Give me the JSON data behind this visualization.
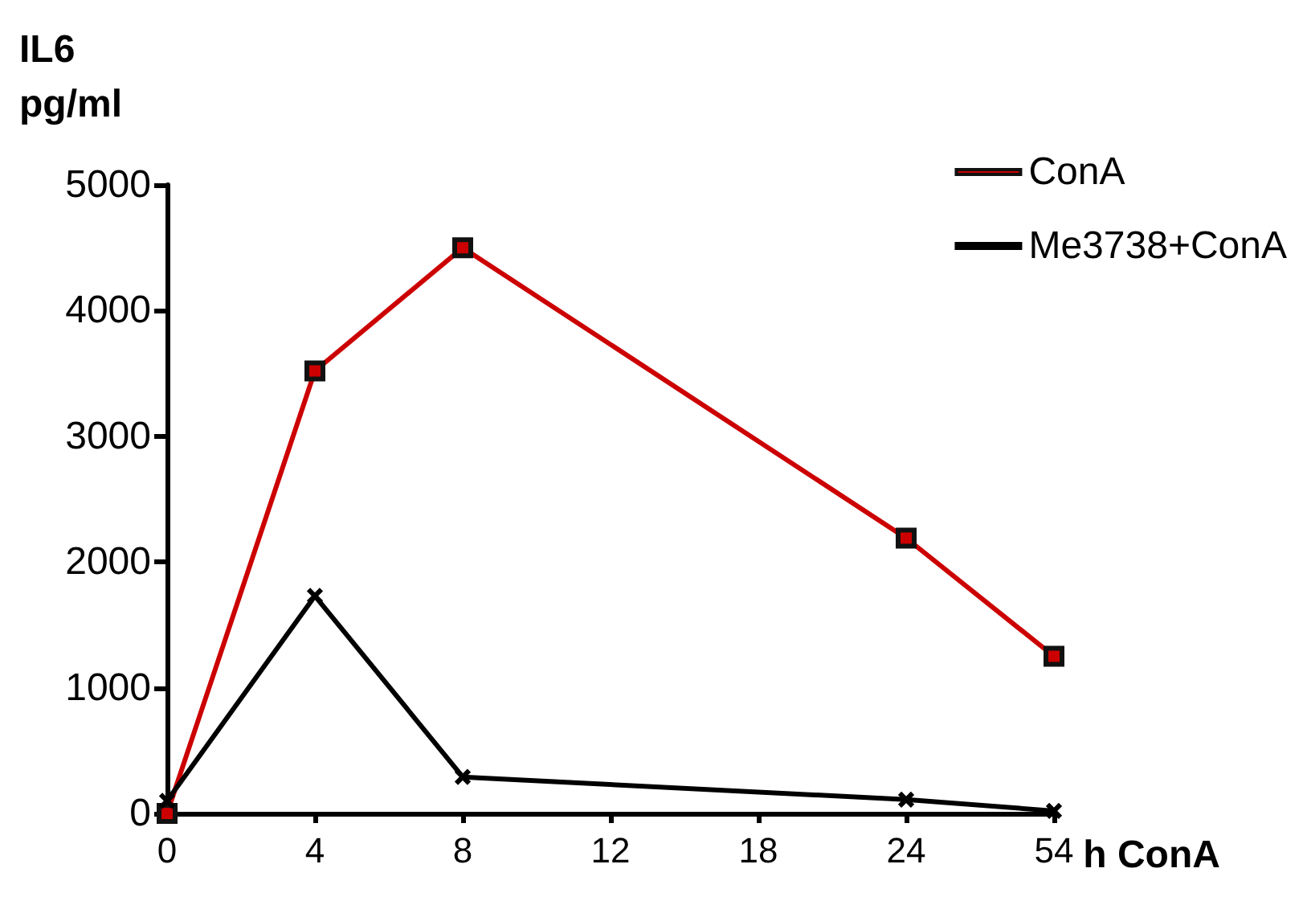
{
  "chart_data": {
    "type": "line",
    "xlabel": "h ConA",
    "ylabel": "IL6\npg/ml",
    "categories": [
      "0",
      "4",
      "8",
      "12",
      "18",
      "24",
      "54"
    ],
    "series": [
      {
        "name": "ConA",
        "color": "#cc0000",
        "marker": "square",
        "values": [
          0,
          3520,
          4500,
          null,
          null,
          2190,
          1250
        ]
      },
      {
        "name": "Me3738+ConA",
        "color": "#000000",
        "marker": "cross",
        "values": [
          100,
          1730,
          290,
          null,
          null,
          110,
          20
        ]
      }
    ],
    "ylim": [
      0,
      5000
    ],
    "yticks": [
      0,
      1000,
      2000,
      3000,
      4000,
      5000
    ],
    "grid": false,
    "legend": "top right"
  }
}
